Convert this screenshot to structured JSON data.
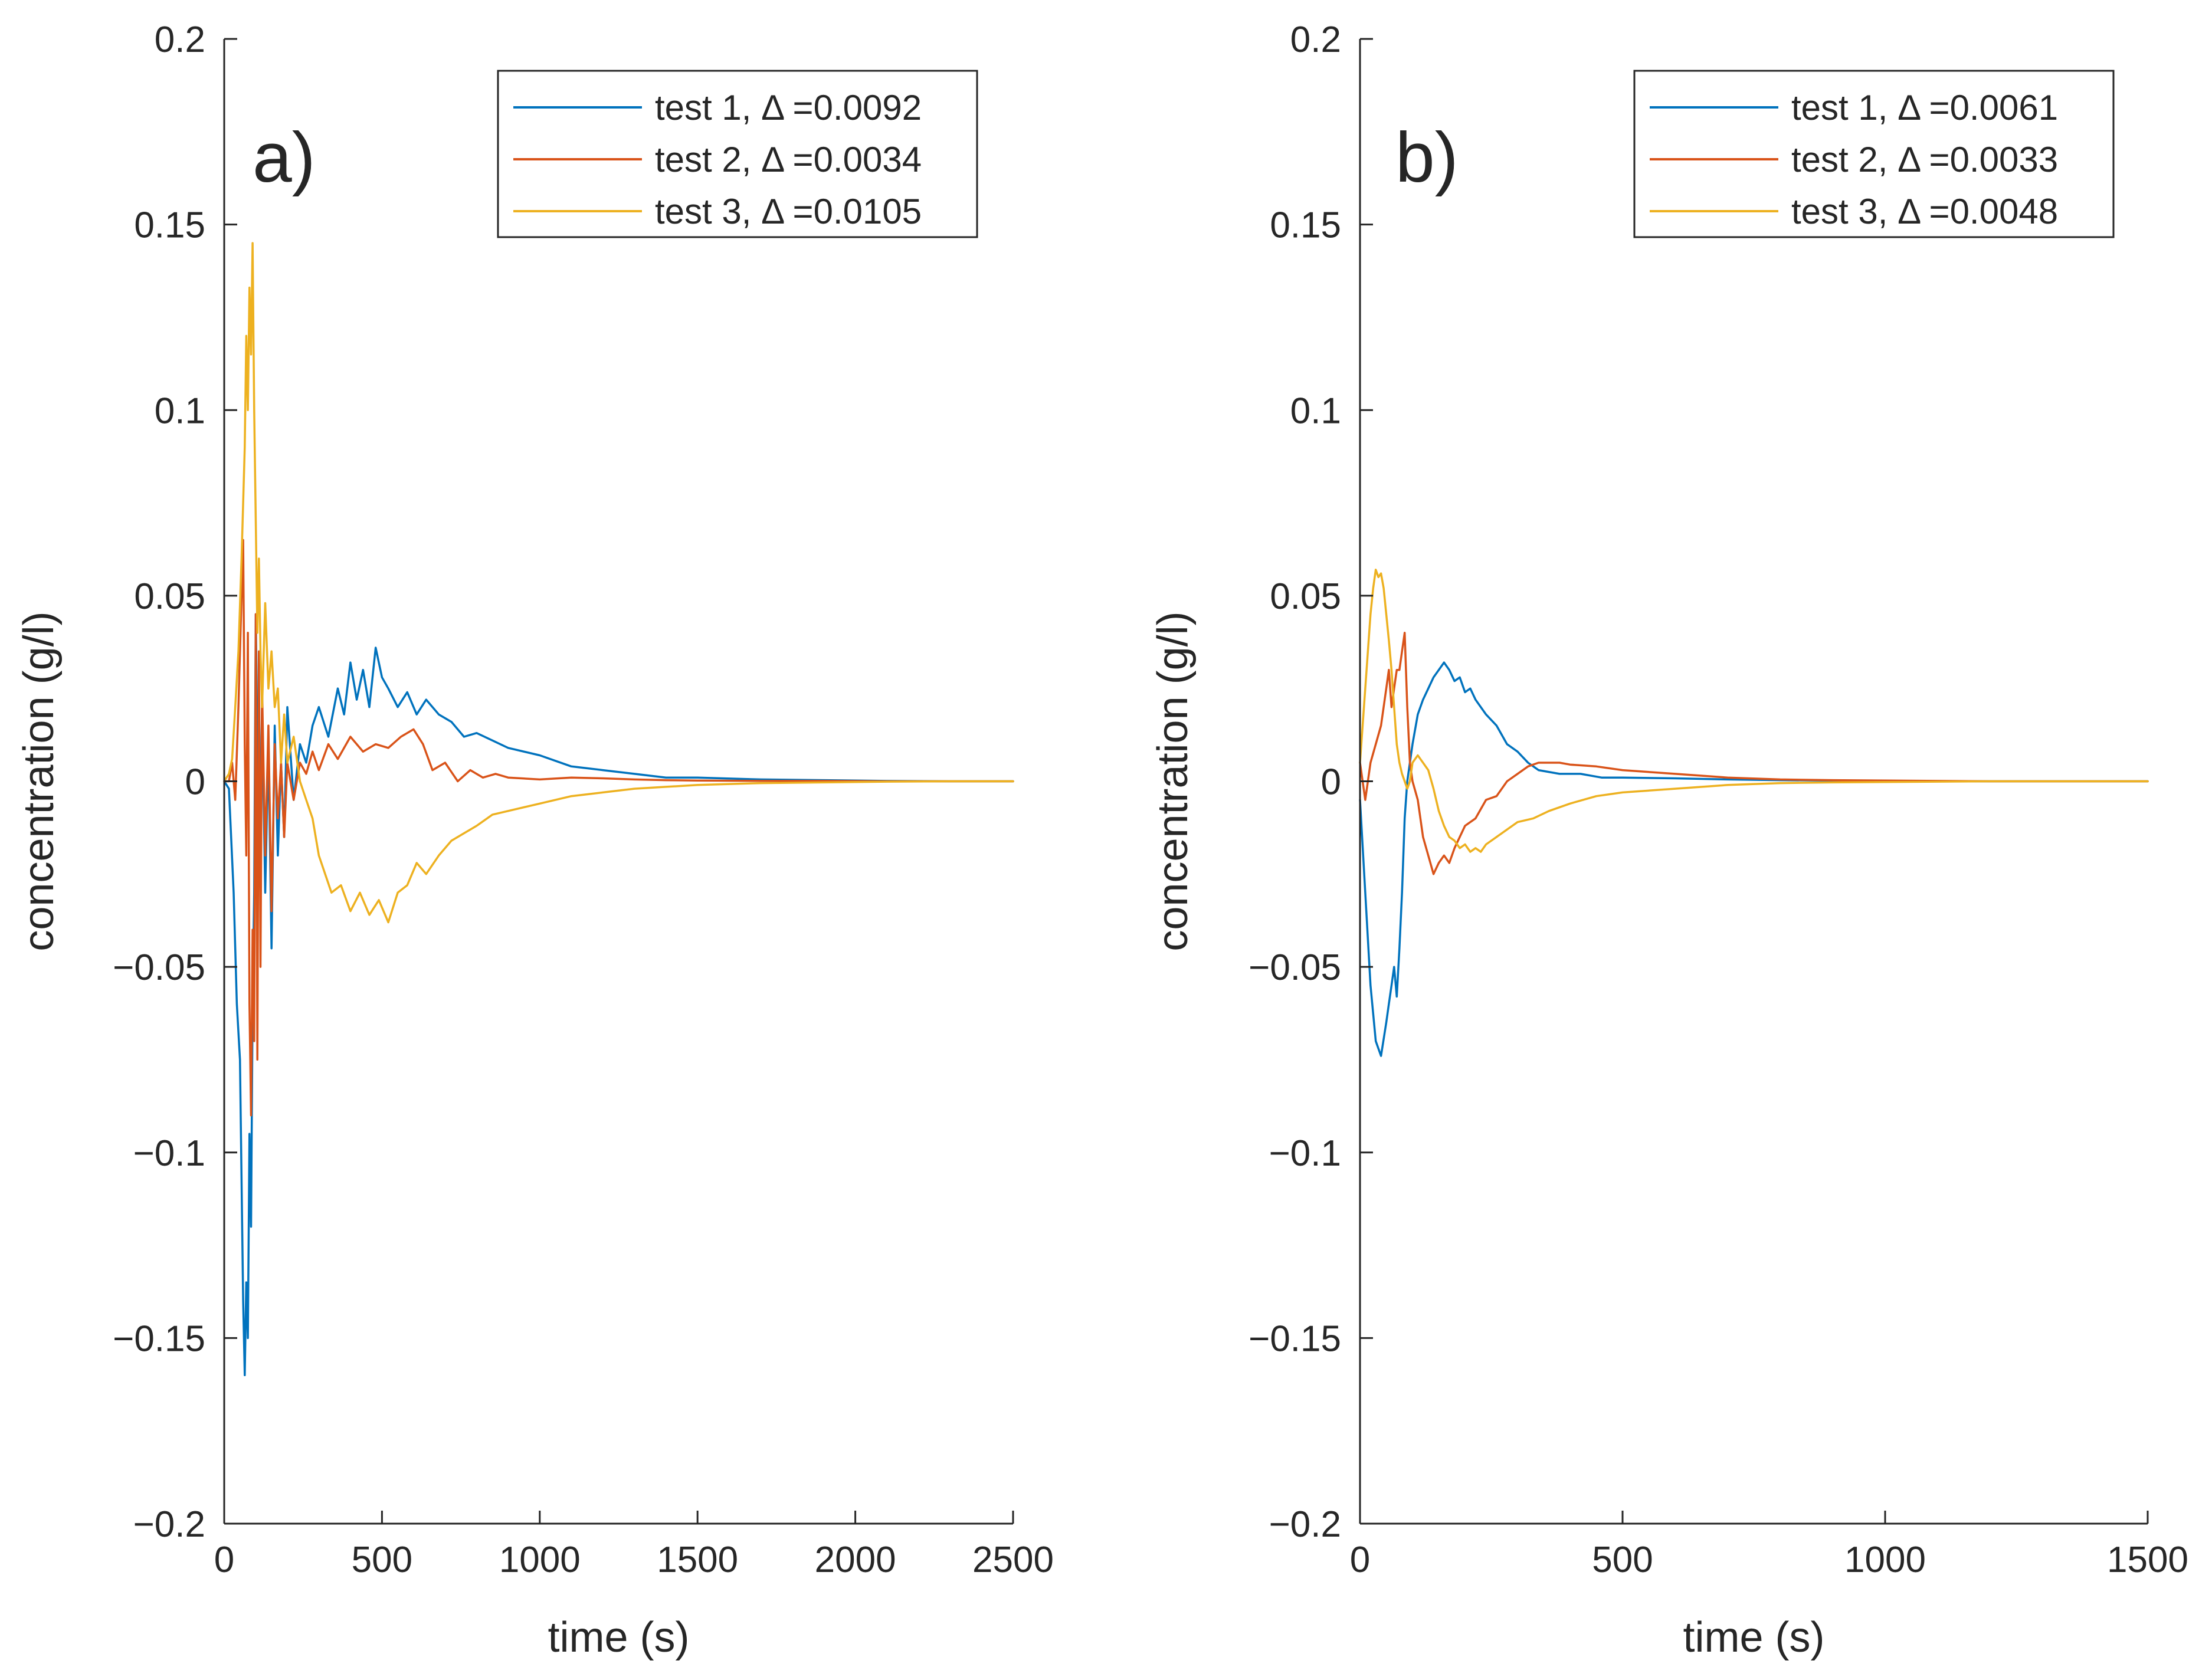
{
  "chart_data": [
    {
      "type": "line",
      "panel_label": "a)",
      "xlabel": "time (s)",
      "ylabel": "concentration (g/l)",
      "xlim": [
        0,
        2500
      ],
      "ylim": [
        -0.2,
        0.2
      ],
      "xticks": [
        0,
        500,
        1000,
        1500,
        2000,
        2500
      ],
      "xtick_labels": [
        "0",
        "500",
        "1000",
        "1500",
        "2000",
        "2500"
      ],
      "yticks": [
        -0.2,
        -0.15,
        -0.1,
        -0.05,
        0,
        0.05,
        0.1,
        0.15,
        0.2
      ],
      "ytick_labels": [
        "−0.2",
        "−0.15",
        "−0.1",
        "−0.05",
        "0",
        "0.05",
        "0.1",
        "0.15",
        "0.2"
      ],
      "grid": false,
      "legend_position": "top-right",
      "series": [
        {
          "name": "test 1, Δ =0.0092",
          "color": "#0072BD",
          "x": [
            0,
            15,
            30,
            40,
            50,
            60,
            65,
            70,
            75,
            80,
            85,
            90,
            95,
            100,
            110,
            120,
            130,
            140,
            150,
            160,
            170,
            180,
            190,
            200,
            220,
            240,
            260,
            280,
            300,
            330,
            360,
            380,
            400,
            420,
            440,
            460,
            480,
            500,
            520,
            550,
            580,
            610,
            640,
            680,
            720,
            760,
            800,
            850,
            900,
            1000,
            1100,
            1200,
            1300,
            1400,
            1500,
            1700,
            1900,
            2100,
            2300,
            2500
          ],
          "y": [
            0,
            -0.002,
            -0.03,
            -0.06,
            -0.075,
            -0.14,
            -0.16,
            -0.135,
            -0.15,
            -0.095,
            -0.12,
            -0.06,
            -0.03,
            0.045,
            -0.025,
            0.02,
            -0.03,
            0.01,
            -0.045,
            0.015,
            -0.02,
            0.005,
            -0.015,
            0.02,
            -0.005,
            0.01,
            0.005,
            0.015,
            0.02,
            0.012,
            0.025,
            0.018,
            0.032,
            0.022,
            0.03,
            0.02,
            0.036,
            0.028,
            0.025,
            0.02,
            0.024,
            0.018,
            0.022,
            0.018,
            0.016,
            0.012,
            0.013,
            0.011,
            0.009,
            0.007,
            0.004,
            0.003,
            0.002,
            0.001,
            0.001,
            0.0005,
            0.0003,
            0.0001,
            0,
            0
          ]
        },
        {
          "name": "test 2, Δ =0.0034",
          "color": "#D95319",
          "x": [
            0,
            15,
            25,
            35,
            45,
            55,
            60,
            65,
            70,
            75,
            80,
            85,
            90,
            95,
            100,
            105,
            110,
            115,
            120,
            130,
            140,
            150,
            160,
            170,
            180,
            190,
            200,
            220,
            240,
            260,
            280,
            300,
            330,
            360,
            400,
            440,
            480,
            520,
            560,
            600,
            630,
            660,
            700,
            740,
            780,
            820,
            860,
            900,
            1000,
            1100,
            1200,
            1300,
            1400,
            1500,
            1700,
            1900,
            2100,
            2300,
            2500
          ],
          "y": [
            0,
            0,
            0.005,
            -0.005,
            0.02,
            0.05,
            0.065,
            0.01,
            -0.02,
            0.04,
            -0.06,
            -0.09,
            -0.04,
            -0.07,
            0.045,
            -0.075,
            0.035,
            -0.05,
            0.025,
            -0.02,
            0.015,
            -0.035,
            0.01,
            -0.01,
            0.005,
            -0.015,
            0.005,
            -0.005,
            0.005,
            0.002,
            0.008,
            0.003,
            0.01,
            0.006,
            0.012,
            0.008,
            0.01,
            0.009,
            0.012,
            0.014,
            0.01,
            0.003,
            0.005,
            0,
            0.003,
            0.001,
            0.002,
            0.001,
            0.0005,
            0.001,
            0.0008,
            0.0005,
            0.0003,
            0.0002,
            0.0001,
            0.0001,
            0,
            0,
            0
          ]
        },
        {
          "name": "test 3, Δ =0.0105",
          "color": "#EDB120",
          "x": [
            0,
            15,
            25,
            35,
            45,
            55,
            65,
            70,
            75,
            80,
            85,
            90,
            95,
            100,
            105,
            110,
            115,
            120,
            130,
            140,
            150,
            160,
            170,
            180,
            190,
            200,
            220,
            240,
            260,
            280,
            300,
            320,
            340,
            370,
            400,
            430,
            460,
            490,
            520,
            550,
            580,
            610,
            640,
            680,
            720,
            760,
            800,
            850,
            900,
            1000,
            1100,
            1200,
            1300,
            1400,
            1500,
            1700,
            1900,
            2100,
            2300,
            2500
          ],
          "y": [
            0,
            0.002,
            0.006,
            0.02,
            0.035,
            0.06,
            0.09,
            0.12,
            0.1,
            0.133,
            0.115,
            0.145,
            0.1,
            0.07,
            0.04,
            0.06,
            0.035,
            0.02,
            0.048,
            0.025,
            0.035,
            0.02,
            0.025,
            0.005,
            0.018,
            0.005,
            0.012,
            0,
            -0.005,
            -0.01,
            -0.02,
            -0.025,
            -0.03,
            -0.028,
            -0.035,
            -0.03,
            -0.036,
            -0.032,
            -0.038,
            -0.03,
            -0.028,
            -0.022,
            -0.025,
            -0.02,
            -0.016,
            -0.014,
            -0.012,
            -0.009,
            -0.008,
            -0.006,
            -0.004,
            -0.003,
            -0.002,
            -0.0015,
            -0.001,
            -0.0005,
            -0.0003,
            -0.0001,
            0,
            0
          ]
        }
      ]
    },
    {
      "type": "line",
      "panel_label": "b)",
      "xlabel": "time (s)",
      "ylabel": "concentration (g/l)",
      "xlim": [
        0,
        1500
      ],
      "ylim": [
        -0.2,
        0.2
      ],
      "xticks": [
        0,
        500,
        1000,
        1500
      ],
      "xtick_labels": [
        "0",
        "500",
        "1000",
        "1500"
      ],
      "yticks": [
        -0.2,
        -0.15,
        -0.1,
        -0.05,
        0,
        0.05,
        0.1,
        0.15,
        0.2
      ],
      "ytick_labels": [
        "−0.2",
        "−0.15",
        "−0.1",
        "−0.05",
        "0",
        "0.05",
        "0.1",
        "0.15",
        "0.2"
      ],
      "grid": false,
      "legend_position": "top-right",
      "series": [
        {
          "name": "test 1, Δ =0.0061",
          "color": "#0072BD",
          "x": [
            0,
            10,
            20,
            30,
            40,
            50,
            55,
            60,
            65,
            70,
            75,
            80,
            85,
            90,
            100,
            110,
            120,
            130,
            140,
            150,
            160,
            170,
            180,
            190,
            200,
            210,
            220,
            240,
            260,
            280,
            300,
            320,
            340,
            380,
            420,
            460,
            500,
            600,
            700,
            800,
            900,
            1000,
            1100,
            1200,
            1300,
            1400,
            1500
          ],
          "y": [
            -0.005,
            -0.03,
            -0.055,
            -0.07,
            -0.074,
            -0.065,
            -0.06,
            -0.055,
            -0.05,
            -0.058,
            -0.045,
            -0.03,
            -0.01,
            0,
            0.01,
            0.018,
            0.022,
            0.025,
            0.028,
            0.03,
            0.032,
            0.03,
            0.027,
            0.028,
            0.024,
            0.025,
            0.022,
            0.018,
            0.015,
            0.01,
            0.008,
            0.005,
            0.003,
            0.002,
            0.002,
            0.001,
            0.001,
            0.0008,
            0.0005,
            0.0003,
            0.0002,
            0.0001,
            0,
            0,
            0,
            0,
            0
          ]
        },
        {
          "name": "test 2, Δ =0.0033",
          "color": "#D95319",
          "x": [
            0,
            10,
            20,
            30,
            40,
            50,
            55,
            60,
            65,
            70,
            75,
            80,
            85,
            90,
            95,
            100,
            110,
            120,
            130,
            140,
            150,
            160,
            170,
            180,
            190,
            200,
            220,
            240,
            260,
            280,
            300,
            320,
            340,
            360,
            380,
            400,
            450,
            500,
            600,
            700,
            800,
            900,
            1000,
            1100,
            1200,
            1300,
            1400,
            1500
          ],
          "y": [
            0.005,
            -0.005,
            0.005,
            0.01,
            0.015,
            0.025,
            0.03,
            0.02,
            0.025,
            0.03,
            0.03,
            0.035,
            0.04,
            0.02,
            0.005,
            0,
            -0.005,
            -0.015,
            -0.02,
            -0.025,
            -0.022,
            -0.02,
            -0.022,
            -0.018,
            -0.015,
            -0.012,
            -0.01,
            -0.005,
            -0.004,
            0,
            0.002,
            0.004,
            0.005,
            0.005,
            0.005,
            0.0045,
            0.004,
            0.003,
            0.002,
            0.001,
            0.0005,
            0.0003,
            0.0002,
            0.0001,
            0,
            0,
            0,
            0
          ]
        },
        {
          "name": "test 3, Δ =0.0048",
          "color": "#EDB120",
          "x": [
            0,
            10,
            20,
            25,
            30,
            35,
            40,
            45,
            50,
            55,
            60,
            65,
            70,
            75,
            80,
            85,
            90,
            95,
            100,
            110,
            120,
            130,
            140,
            150,
            160,
            170,
            180,
            190,
            200,
            210,
            220,
            230,
            240,
            260,
            280,
            300,
            330,
            360,
            400,
            450,
            500,
            600,
            700,
            800,
            900,
            1000,
            1100,
            1200,
            1300,
            1400,
            1500
          ],
          "y": [
            0.005,
            0.025,
            0.045,
            0.052,
            0.057,
            0.055,
            0.056,
            0.052,
            0.045,
            0.038,
            0.03,
            0.02,
            0.01,
            0.005,
            0.002,
            0,
            -0.002,
            0,
            0.005,
            0.007,
            0.005,
            0.003,
            -0.002,
            -0.008,
            -0.012,
            -0.015,
            -0.016,
            -0.018,
            -0.017,
            -0.019,
            -0.018,
            -0.019,
            -0.017,
            -0.015,
            -0.013,
            -0.011,
            -0.01,
            -0.008,
            -0.006,
            -0.004,
            -0.003,
            -0.002,
            -0.001,
            -0.0005,
            -0.0003,
            -0.0002,
            -0.0001,
            0,
            0,
            0,
            0
          ]
        }
      ]
    }
  ]
}
